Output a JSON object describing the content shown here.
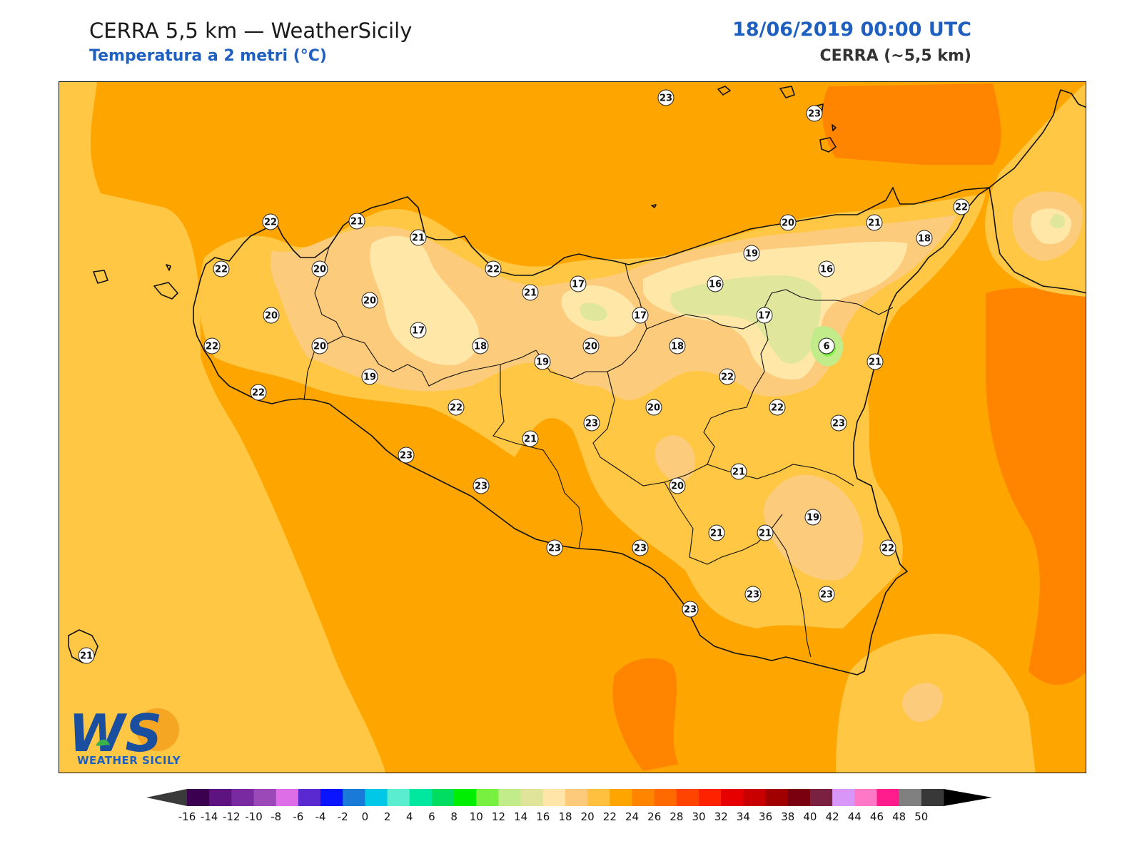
{
  "header": {
    "title": "CERRA 5,5 km — WeatherSicily",
    "subtitle": "Temperatura a 2 metri (°C)",
    "datetime": "18/06/2019 00:00 UTC",
    "model": "CERRA (~5,5 km)"
  },
  "logo": {
    "text": "WEATHER SICILY",
    "mark": "WS"
  },
  "colors": {
    "t16": "#ffe7a8",
    "t18": "#fdcb7c",
    "t20": "#ffc743",
    "t22": "#ffa500",
    "t24": "#ff8400",
    "t14": "#e0e79c",
    "t12": "#c2eb8a",
    "t10": "#80ee43",
    "t8": "#38e860"
  },
  "stations": [
    {
      "value": "23"
    },
    {
      "value": "23"
    },
    {
      "value": "22"
    },
    {
      "value": "21"
    },
    {
      "value": "21"
    },
    {
      "value": "22"
    },
    {
      "value": "20"
    },
    {
      "value": "22"
    },
    {
      "value": "20"
    },
    {
      "value": "20"
    },
    {
      "value": "17"
    },
    {
      "value": "18"
    },
    {
      "value": "22"
    },
    {
      "value": "20"
    },
    {
      "value": "19"
    },
    {
      "value": "19"
    },
    {
      "value": "22"
    },
    {
      "value": "21"
    },
    {
      "value": "17"
    },
    {
      "value": "17"
    },
    {
      "value": "20"
    },
    {
      "value": "18"
    },
    {
      "value": "16"
    },
    {
      "value": "19"
    },
    {
      "value": "20"
    },
    {
      "value": "21"
    },
    {
      "value": "16"
    },
    {
      "value": "18"
    },
    {
      "value": "22"
    },
    {
      "value": "17"
    },
    {
      "value": "22"
    },
    {
      "value": "6"
    },
    {
      "value": "21"
    },
    {
      "value": "22"
    },
    {
      "value": "23"
    },
    {
      "value": "22"
    },
    {
      "value": "21"
    },
    {
      "value": "23"
    },
    {
      "value": "23"
    },
    {
      "value": "23"
    },
    {
      "value": "20"
    },
    {
      "value": "21"
    },
    {
      "value": "20"
    },
    {
      "value": "19"
    },
    {
      "value": "22"
    },
    {
      "value": "23"
    },
    {
      "value": "23"
    },
    {
      "value": "23"
    },
    {
      "value": "21"
    },
    {
      "value": "21"
    },
    {
      "value": "23"
    },
    {
      "value": "23"
    },
    {
      "value": "21"
    }
  ],
  "colorbar": {
    "ticks": [
      "-16",
      "-14",
      "-12",
      "-10",
      "-8",
      "-6",
      "-4",
      "-2",
      "0",
      "2",
      "4",
      "6",
      "8",
      "10",
      "12",
      "14",
      "16",
      "18",
      "20",
      "22",
      "24",
      "26",
      "28",
      "30",
      "32",
      "34",
      "36",
      "38",
      "40",
      "42",
      "44",
      "46",
      "48",
      "50"
    ],
    "colors": [
      "#3c0050",
      "#5e1480",
      "#7a2aa0",
      "#9b48b8",
      "#de6ee8",
      "#5a2ad0",
      "#0a14ff",
      "#1a7ad8",
      "#00c8e6",
      "#5aedd0",
      "#00e8a0",
      "#00dd60",
      "#00ee00",
      "#78f040",
      "#c2ec8a",
      "#e0e49a",
      "#ffe6a8",
      "#fdc97a",
      "#ffc040",
      "#ffa500",
      "#ff8400",
      "#ff6a00",
      "#ff4400",
      "#ff2200",
      "#e60000",
      "#c80000",
      "#a00000",
      "#7a0010",
      "#7a2040",
      "#d896f8",
      "#ff78c8",
      "#ff1c8c",
      "#808080",
      "#383838"
    ],
    "under_color": "#3a3a3a",
    "over_color": "#000000"
  }
}
